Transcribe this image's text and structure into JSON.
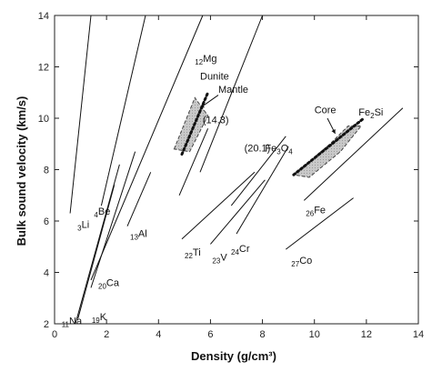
{
  "chart_data": {
    "type": "line",
    "xlabel": "Density (g/cm³)",
    "ylabel": "Bulk sound velocity (km/s)",
    "xlim": [
      0,
      14
    ],
    "ylim": [
      2,
      14
    ],
    "x_ticks": [
      0,
      2,
      4,
      6,
      8,
      10,
      12,
      14
    ],
    "y_ticks": [
      2,
      4,
      6,
      8,
      10,
      12,
      14
    ],
    "series": [
      {
        "prefix": "3",
        "name": "Li",
        "points": [
          [
            0.6,
            6.3
          ],
          [
            1.4,
            14.0
          ]
        ]
      },
      {
        "prefix": "4",
        "name": "Be",
        "points": [
          [
            1.8,
            6.6
          ],
          [
            3.5,
            14.0
          ]
        ]
      },
      {
        "prefix": "11",
        "name": "Na",
        "points": [
          [
            0.9,
            2.2
          ],
          [
            2.3,
            7.4
          ]
        ]
      },
      {
        "prefix": "19",
        "name": "K",
        "points": [
          [
            0.8,
            2.0
          ],
          [
            2.5,
            8.2
          ]
        ]
      },
      {
        "prefix": "20",
        "name": "Ca",
        "points": [
          [
            1.4,
            3.4
          ],
          [
            3.1,
            8.7
          ]
        ]
      },
      {
        "prefix": "12",
        "name": "Mg",
        "points": [
          [
            1.4,
            3.7
          ],
          [
            5.7,
            14.0
          ]
        ]
      },
      {
        "prefix": "13",
        "name": "Al",
        "points": [
          [
            2.8,
            5.8
          ],
          [
            3.7,
            7.9
          ]
        ]
      },
      {
        "prefix": "",
        "name": "",
        "points": [
          [
            4.8,
            7.0
          ],
          [
            5.9,
            9.6
          ]
        ]
      },
      {
        "prefix": "",
        "name": "",
        "points": [
          [
            5.6,
            7.9
          ],
          [
            8.0,
            14.0
          ]
        ]
      },
      {
        "prefix": "22",
        "name": "Ti",
        "points": [
          [
            4.9,
            5.3
          ],
          [
            7.7,
            7.9
          ]
        ]
      },
      {
        "prefix": "23",
        "name": "V",
        "points": [
          [
            6.0,
            5.1
          ],
          [
            8.1,
            7.6
          ]
        ]
      },
      {
        "prefix": "",
        "name": "",
        "points": [
          [
            6.8,
            6.6
          ],
          [
            8.9,
            9.3
          ]
        ]
      },
      {
        "prefix": "24",
        "name": "Cr",
        "points": [
          [
            7.0,
            5.5
          ],
          [
            9.0,
            8.9
          ]
        ]
      },
      {
        "prefix": "26",
        "name": "Fe",
        "points": [
          [
            9.6,
            6.8
          ],
          [
            13.4,
            10.4
          ]
        ]
      },
      {
        "prefix": "27",
        "name": "Co",
        "points": [
          [
            8.9,
            4.9
          ],
          [
            11.5,
            6.9
          ]
        ]
      }
    ],
    "regions": [
      {
        "name": "Mantle",
        "polygon": [
          [
            4.6,
            8.8
          ],
          [
            5.4,
            10.8
          ],
          [
            5.9,
            10.1
          ],
          [
            5.2,
            8.7
          ]
        ]
      },
      {
        "name": "Core",
        "polygon": [
          [
            9.2,
            7.8
          ],
          [
            10.6,
            9.0
          ],
          [
            11.3,
            9.7
          ],
          [
            11.8,
            9.7
          ],
          [
            11.0,
            8.7
          ],
          [
            9.8,
            7.7
          ]
        ]
      }
    ],
    "dotted_lines": [
      {
        "name": "Dunite",
        "points": [
          [
            4.9,
            8.6
          ],
          [
            5.9,
            11.0
          ]
        ]
      },
      {
        "name": "Fe2Si",
        "points": [
          [
            9.2,
            7.8
          ],
          [
            11.9,
            10.0
          ]
        ]
      }
    ],
    "annotations": [
      {
        "text": "Dunite",
        "at": [
          5.6,
          11.5
        ]
      },
      {
        "text": "Mantle",
        "at": [
          6.3,
          11.0
        ]
      },
      {
        "text": "(14.3)",
        "at": [
          5.7,
          9.8
        ]
      },
      {
        "text": "(20.1)",
        "at": [
          7.3,
          8.7
        ]
      },
      {
        "text": "Fe3O4",
        "at": [
          8.1,
          8.7
        ]
      },
      {
        "text": "Core",
        "at": [
          10.0,
          10.2
        ]
      },
      {
        "text": "Fe2Si",
        "at": [
          11.7,
          10.1
        ]
      }
    ]
  }
}
